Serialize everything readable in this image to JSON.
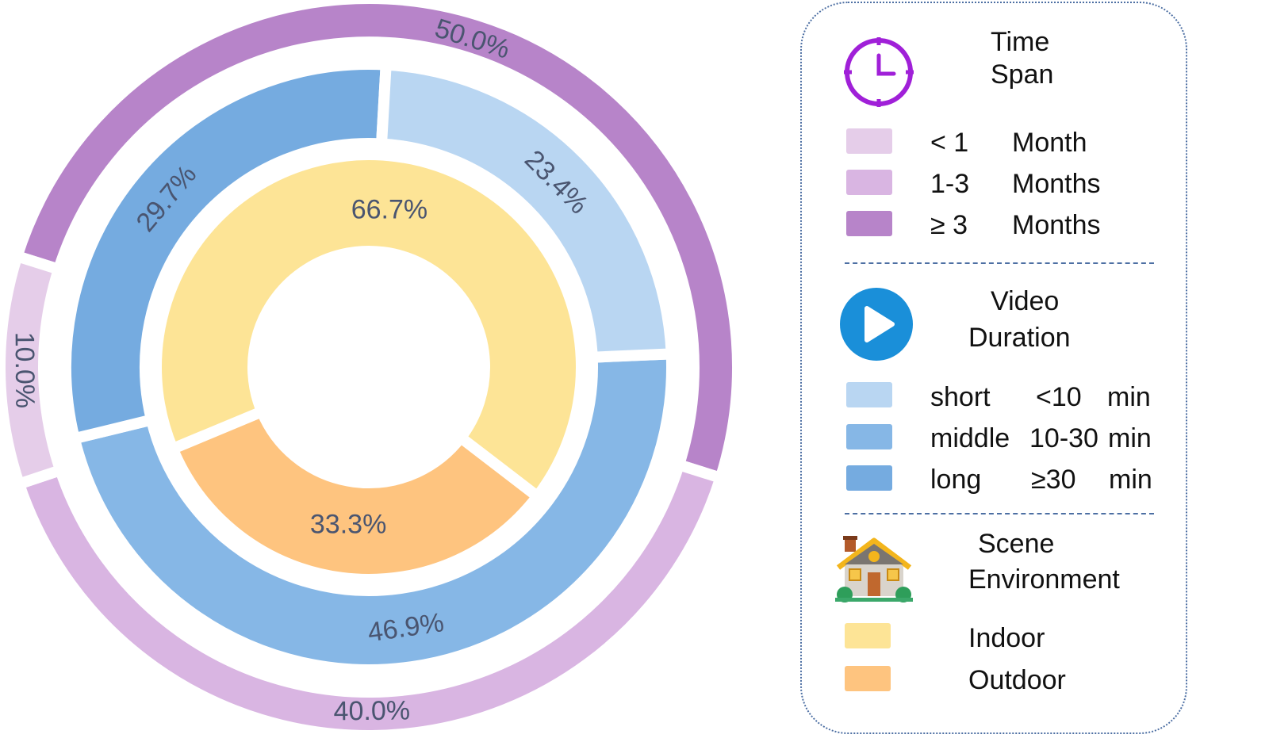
{
  "chart_data": {
    "type": "nested-donut",
    "rings": [
      {
        "name": "Time Span",
        "categories": [
          "< 1 Month",
          "1-3 Months",
          "≥ 3 Months"
        ],
        "slices": [
          {
            "category": "≥ 3 Months",
            "value": 50.0,
            "label": "50.0%",
            "color": "#b784c9"
          },
          {
            "category": "1-3 Months",
            "value": 40.0,
            "label": "40.0%",
            "color": "#d9b5e2"
          },
          {
            "category": "< 1 Month",
            "value": 10.0,
            "label": "10.0%",
            "color": "#e5cde9"
          }
        ]
      },
      {
        "name": "Video Duration",
        "categories": [
          "short <10 min",
          "middle 10-30 min",
          "long ≥30 min"
        ],
        "slices": [
          {
            "category": "middle 10-30 min",
            "value": 46.9,
            "label": "46.9%",
            "color": "#86b7e6"
          },
          {
            "category": "long ≥30 min",
            "value": 29.7,
            "label": "29.7%",
            "color": "#75abe0"
          },
          {
            "category": "short <10 min",
            "value": 23.4,
            "label": "23.4%",
            "color": "#b9d6f2"
          }
        ]
      },
      {
        "name": "Scene Environment",
        "categories": [
          "Indoor",
          "Outdoor"
        ],
        "slices": [
          {
            "category": "Outdoor",
            "value": 33.3,
            "label": "33.3%",
            "color": "#fec47f"
          },
          {
            "category": "Indoor",
            "value": 66.7,
            "label": "66.7%",
            "color": "#fde496"
          }
        ]
      }
    ]
  },
  "legend": {
    "time_span": {
      "title_line1": "Time",
      "title_line2": "Span",
      "icon": "clock-icon",
      "icon_color": "#a020d8",
      "items": [
        {
          "a": "< 1",
          "b": "Month",
          "color": "#e5cde9"
        },
        {
          "a": "1-3",
          "b": "Months",
          "color": "#d9b5e2"
        },
        {
          "a": "≥ 3",
          "b": "Months",
          "color": "#b784c9"
        }
      ]
    },
    "video_duration": {
      "title_line1": "Video",
      "title_line2": "Duration",
      "icon": "play-icon",
      "icon_color": "#1a8fd9",
      "items": [
        {
          "a": "short",
          "b": "<10",
          "c": "min",
          "color": "#b9d6f2"
        },
        {
          "a": "middle",
          "b": "10-30",
          "c": "min",
          "color": "#86b7e6"
        },
        {
          "a": "long",
          "b": "≥30",
          "c": "min",
          "color": "#75abe0"
        }
      ]
    },
    "scene_environment": {
      "title_line1": "Scene",
      "title_line2": "Environment",
      "icon": "house-icon",
      "items": [
        {
          "a": "Indoor",
          "color": "#fde496"
        },
        {
          "a": "Outdoor",
          "color": "#fec47f"
        }
      ]
    }
  }
}
